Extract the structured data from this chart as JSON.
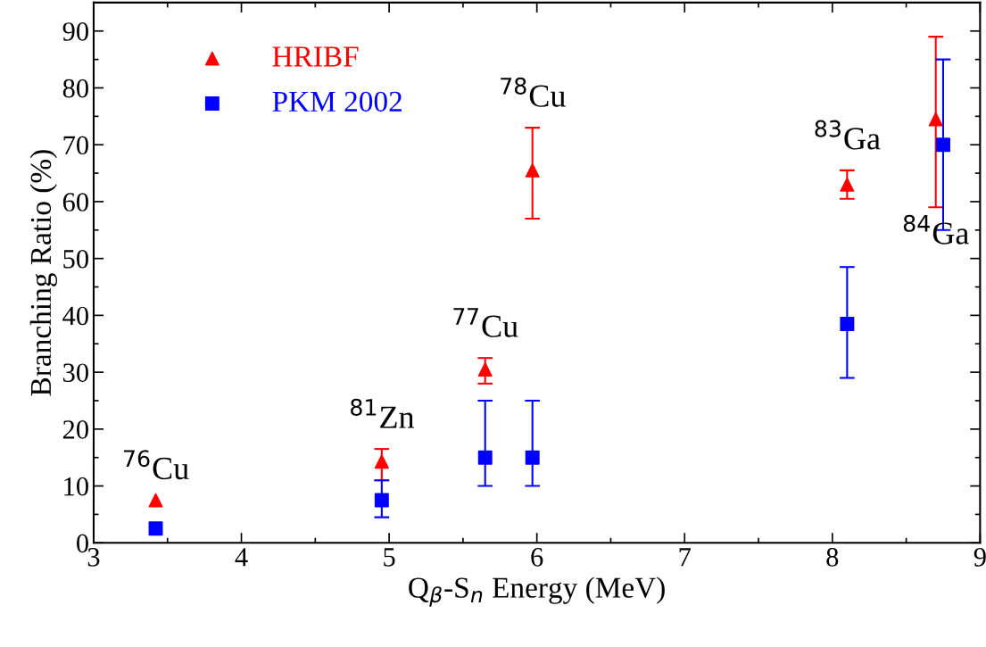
{
  "chart_data": {
    "type": "scatter",
    "xlabel": "Q$_{β}$-S$_{n}$ Energy (MeV)",
    "ylabel": "Branching Ratio (%)",
    "xlim": [
      3,
      9
    ],
    "ylim": [
      0,
      95
    ],
    "xticks": [
      3,
      4,
      5,
      6,
      7,
      8,
      9
    ],
    "yticks": [
      0,
      10,
      20,
      30,
      40,
      50,
      60,
      70,
      80,
      90
    ],
    "legend": "top left",
    "grid": false,
    "series": [
      {
        "name": "HRIBF",
        "color": "#ff0000",
        "marker": "triangle",
        "x": [
          3.42,
          4.95,
          5.65,
          5.97,
          8.1,
          8.7
        ],
        "values": [
          7.5,
          14.3,
          30.5,
          65.5,
          63,
          74.5
        ],
        "errors": [
          null,
          [
            11,
            16.5
          ],
          [
            28,
            32.5
          ],
          [
            57,
            73
          ],
          [
            60.5,
            65.5
          ],
          [
            59,
            89
          ]
        ]
      },
      {
        "name": "PKM 2002",
        "color": "#0000ff",
        "marker": "square",
        "x": [
          3.42,
          4.95,
          5.65,
          5.97,
          8.1,
          8.75
        ],
        "values": [
          2.5,
          7.5,
          15,
          15,
          38.5,
          70
        ],
        "errors": [
          null,
          [
            4.5,
            11
          ],
          [
            10,
            25
          ],
          [
            10,
            25
          ],
          [
            29,
            48.5
          ],
          [
            55,
            85
          ]
        ]
      }
    ],
    "annotations": [
      {
        "text": "$^{76}$Cu",
        "x": 3.42,
        "y": 7.5
      },
      {
        "text": "$^{81}$Zn",
        "x": 4.95,
        "y": 14.3
      },
      {
        "text": "$^{77}$Cu",
        "x": 5.65,
        "y": 30.5
      },
      {
        "text": "$^{78}$Cu",
        "x": 5.97,
        "y": 65.5
      },
      {
        "text": "$^{83}$Ga",
        "x": 8.1,
        "y": 63
      },
      {
        "text": "$^{84}$Ga",
        "x": 8.7,
        "y": 74.5
      }
    ]
  }
}
